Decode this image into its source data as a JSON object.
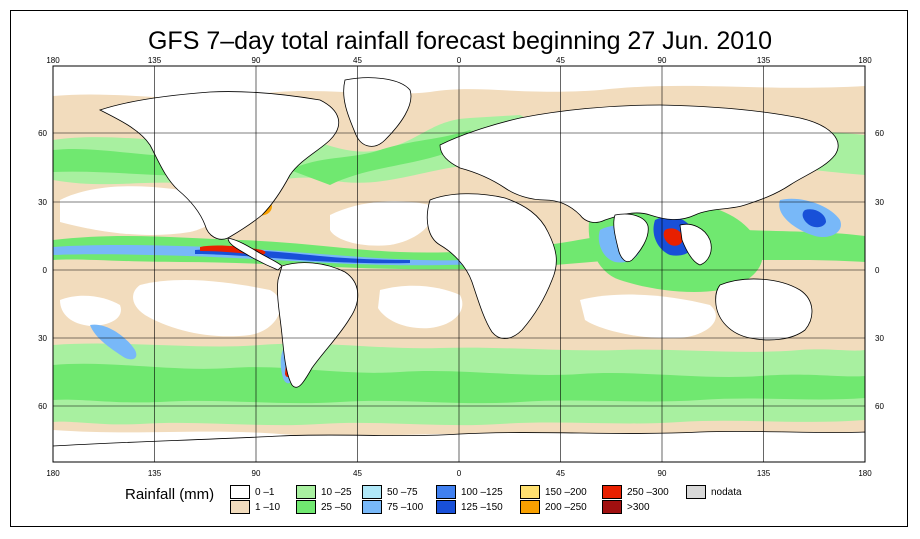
{
  "title": "GFS 7–day total rainfall forecast beginning 27 Jun. 2010",
  "axes": {
    "lon_ticks": [
      "180",
      "135",
      "90",
      "45",
      "0",
      "45",
      "90",
      "135",
      "180"
    ],
    "lat_ticks": [
      "60",
      "30",
      "0",
      "30",
      "60"
    ],
    "lon_range": [
      -180,
      180
    ],
    "lat_range": [
      -85,
      85
    ],
    "grid": true
  },
  "legend": {
    "title": "Rainfall (mm)",
    "items": [
      {
        "label": "0 –1",
        "color": "#ffffff"
      },
      {
        "label": "1 –10",
        "color": "#f2dcbd"
      },
      {
        "label": "10 –25",
        "color": "#a8f0a0"
      },
      {
        "label": "25 –50",
        "color": "#70e870"
      },
      {
        "label": "50 –75",
        "color": "#b0e8f8"
      },
      {
        "label": "75 –100",
        "color": "#78b8f8"
      },
      {
        "label": "100 –125",
        "color": "#4080f0"
      },
      {
        "label": "125 –150",
        "color": "#1850d8"
      },
      {
        "label": "150 –200",
        "color": "#ffe070"
      },
      {
        "label": "200 –250",
        "color": "#f8a000"
      },
      {
        "label": "250 –300",
        "color": "#e82000"
      },
      {
        "label": ">300",
        "color": "#a01010"
      },
      {
        "label": "nodata",
        "color": "#d8d8d8"
      }
    ]
  }
}
